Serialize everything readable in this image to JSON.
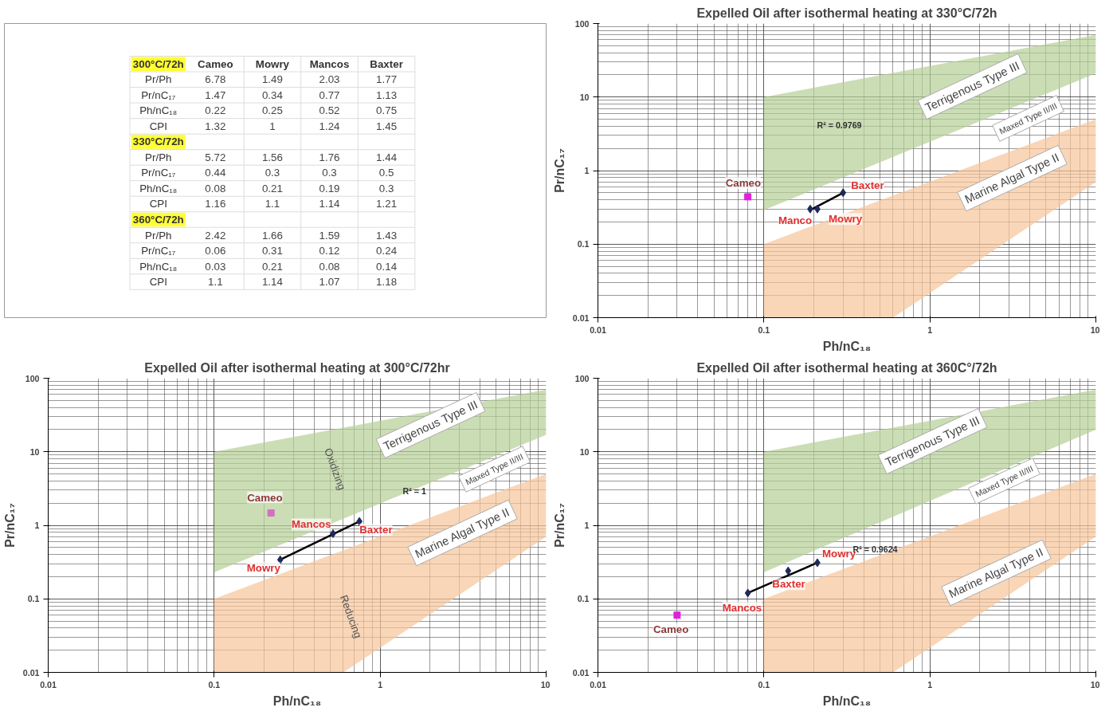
{
  "chart_data": [
    {
      "type": "other",
      "categories": [
        "Cameo",
        "Mowry",
        "Mancos",
        "Baxter"
      ],
      "y_categories": [
        "300°C/72h",
        "Pr/Ph",
        "Pr/nC₁₇",
        "Ph/nC₁₈",
        "CPI",
        "330°C/72h",
        "Pr/Ph",
        "Pr/nC₁₇",
        "Ph/nC₁₈",
        "CPI",
        "360°C/72h",
        "Pr/Ph",
        "Pr/nC₁₇",
        "Ph/nC₁₈",
        "CPI"
      ],
      "cell_labels": [
        [
          null,
          null,
          null,
          null
        ],
        [
          "6.78",
          "1.49",
          "2.03",
          "1.77"
        ],
        [
          "1.47",
          "0.34",
          "0.77",
          "1.13"
        ],
        [
          "0.22",
          "0.25",
          "0.52",
          "0.75"
        ],
        [
          "1.32",
          "1",
          "1.24",
          "1.45"
        ],
        [
          null,
          null,
          null,
          null
        ],
        [
          "5.72",
          "1.56",
          "1.76",
          "1.44"
        ],
        [
          "0.44",
          "0.3",
          "0.3",
          "0.5"
        ],
        [
          "0.08",
          "0.21",
          "0.19",
          "0.3"
        ],
        [
          "1.16",
          "1.1",
          "1.14",
          "1.21"
        ],
        [
          null,
          null,
          null,
          null
        ],
        [
          "2.42",
          "1.66",
          "1.59",
          "1.43"
        ],
        [
          "0.06",
          "0.31",
          "0.12",
          "0.24"
        ],
        [
          "0.03",
          "0.21",
          "0.08",
          "0.14"
        ],
        [
          "1.1",
          "1.14",
          "1.07",
          "1.18"
        ]
      ]
    },
    {
      "type": "scatter",
      "title": "Expelled Oil after isothermal heating at 330°C/72h",
      "xlabel": "Ph/nC₁₈",
      "ylabel": "Pr/nC₁₇",
      "log": "xy",
      "grid": true,
      "xlim": [
        0.01,
        10
      ],
      "ylim": [
        0.01,
        100
      ],
      "xticks": [
        0.01,
        0.1,
        1,
        10
      ],
      "yticks": [
        0.01,
        0.1,
        1,
        10,
        100
      ],
      "series": [
        {
          "type": "area",
          "color": "#b5cf95",
          "x": [
            0.1,
            10,
            10,
            0.1
          ],
          "values": [
            0.29,
            21,
            70,
            10
          ]
        },
        {
          "type": "area",
          "color": "#f6c49a",
          "x": [
            0.1,
            0.6,
            10,
            10,
            0.1
          ],
          "values": [
            0.01,
            0.01,
            0.7,
            5,
            0.1
          ]
        },
        {
          "type": "line",
          "color": "#000000",
          "x": [
            0.19,
            0.3
          ],
          "values": [
            0.29,
            0.5
          ]
        },
        {
          "type": "scatter",
          "name": "Cameo",
          "marker": "square",
          "color": "#e020e0",
          "x": [
            0.08
          ],
          "values": [
            0.44
          ]
        },
        {
          "type": "scatter",
          "name": "Manco",
          "marker": "diamond",
          "color": "#1f2a5a",
          "x": [
            0.19
          ],
          "values": [
            0.3
          ]
        },
        {
          "type": "scatter",
          "name": "Mowry",
          "marker": "diamond",
          "color": "#1f2a5a",
          "x": [
            0.21
          ],
          "values": [
            0.3
          ]
        },
        {
          "type": "scatter",
          "name": "Baxter",
          "marker": "diamond",
          "color": "#1f2a5a",
          "x": [
            0.3
          ],
          "values": [
            0.5
          ]
        }
      ],
      "annotations": [
        "Terrigenous Type III",
        "Maxed Type II/III",
        "Marine Algal Type II",
        "R² = 0.9769"
      ]
    },
    {
      "type": "scatter",
      "title": "Expelled Oil after isothermal heating at 300°C/72hr",
      "xlabel": "Ph/nC₁₈",
      "ylabel": "Pr/nC₁₇",
      "log": "xy",
      "grid": true,
      "xlim": [
        0.01,
        10
      ],
      "ylim": [
        0.01,
        100
      ],
      "xticks": [
        0.01,
        0.1,
        1,
        10
      ],
      "yticks": [
        0.01,
        0.1,
        1,
        10,
        100
      ],
      "series": [
        {
          "type": "area",
          "color": "#b5cf95",
          "x": [
            0.1,
            10,
            10,
            0.1
          ],
          "values": [
            0.23,
            17,
            70,
            10
          ]
        },
        {
          "type": "area",
          "color": "#f6c49a",
          "x": [
            0.1,
            0.6,
            10,
            10,
            0.1
          ],
          "values": [
            0.01,
            0.01,
            0.7,
            5,
            0.1
          ]
        },
        {
          "type": "line",
          "color": "#000000",
          "x": [
            0.25,
            0.75
          ],
          "values": [
            0.34,
            1.13
          ]
        },
        {
          "type": "scatter",
          "name": "Cameo",
          "marker": "square",
          "color": "#d070c0",
          "x": [
            0.22
          ],
          "values": [
            1.47
          ]
        },
        {
          "type": "scatter",
          "name": "Mowry",
          "marker": "diamond",
          "color": "#1f2a5a",
          "x": [
            0.25
          ],
          "values": [
            0.34
          ]
        },
        {
          "type": "scatter",
          "name": "Mancos",
          "marker": "diamond",
          "color": "#1f2a5a",
          "x": [
            0.52
          ],
          "values": [
            0.77
          ]
        },
        {
          "type": "scatter",
          "name": "Baxter",
          "marker": "diamond",
          "color": "#1f2a5a",
          "x": [
            0.75
          ],
          "values": [
            1.13
          ]
        }
      ],
      "annotations": [
        "Terrigenous Type III",
        "Maxed Type II/III",
        "Marine Algal Type II",
        "Oxidizing",
        "Reducing",
        "R² = 1"
      ]
    },
    {
      "type": "scatter",
      "title": "Expelled Oil after isothermal heating at 360C°/72h",
      "xlabel": "Ph/nC₁₈",
      "ylabel": "Pr/nC₁₇",
      "log": "xy",
      "grid": true,
      "xlim": [
        0.01,
        10
      ],
      "ylim": [
        0.01,
        100
      ],
      "xticks": [
        0.01,
        0.1,
        1,
        10
      ],
      "yticks": [
        0.01,
        0.1,
        1,
        10,
        100
      ],
      "series": [
        {
          "type": "area",
          "color": "#b5cf95",
          "x": [
            0.1,
            10,
            10,
            0.1
          ],
          "values": [
            0.23,
            20,
            70,
            10
          ]
        },
        {
          "type": "area",
          "color": "#f6c49a",
          "x": [
            0.1,
            0.6,
            10,
            10,
            0.1
          ],
          "values": [
            0.01,
            0.01,
            0.7,
            5,
            0.1
          ]
        },
        {
          "type": "line",
          "color": "#000000",
          "x": [
            0.08,
            0.21
          ],
          "values": [
            0.12,
            0.31
          ]
        },
        {
          "type": "scatter",
          "name": "Cameo",
          "marker": "square",
          "color": "#e020e0",
          "x": [
            0.03
          ],
          "values": [
            0.06
          ]
        },
        {
          "type": "scatter",
          "name": "Mancos",
          "marker": "diamond",
          "color": "#1f2a5a",
          "x": [
            0.08
          ],
          "values": [
            0.12
          ]
        },
        {
          "type": "scatter",
          "name": "Baxter",
          "marker": "diamond",
          "color": "#1f2a5a",
          "x": [
            0.14
          ],
          "values": [
            0.24
          ]
        },
        {
          "type": "scatter",
          "name": "Mowry",
          "marker": "diamond",
          "color": "#1f2a5a",
          "x": [
            0.21
          ],
          "values": [
            0.31
          ]
        }
      ],
      "annotations": [
        "Terrigenous Type III",
        "Maxed Type II/III",
        "Marine Algal Type II",
        "R² = 0.9624"
      ]
    }
  ]
}
